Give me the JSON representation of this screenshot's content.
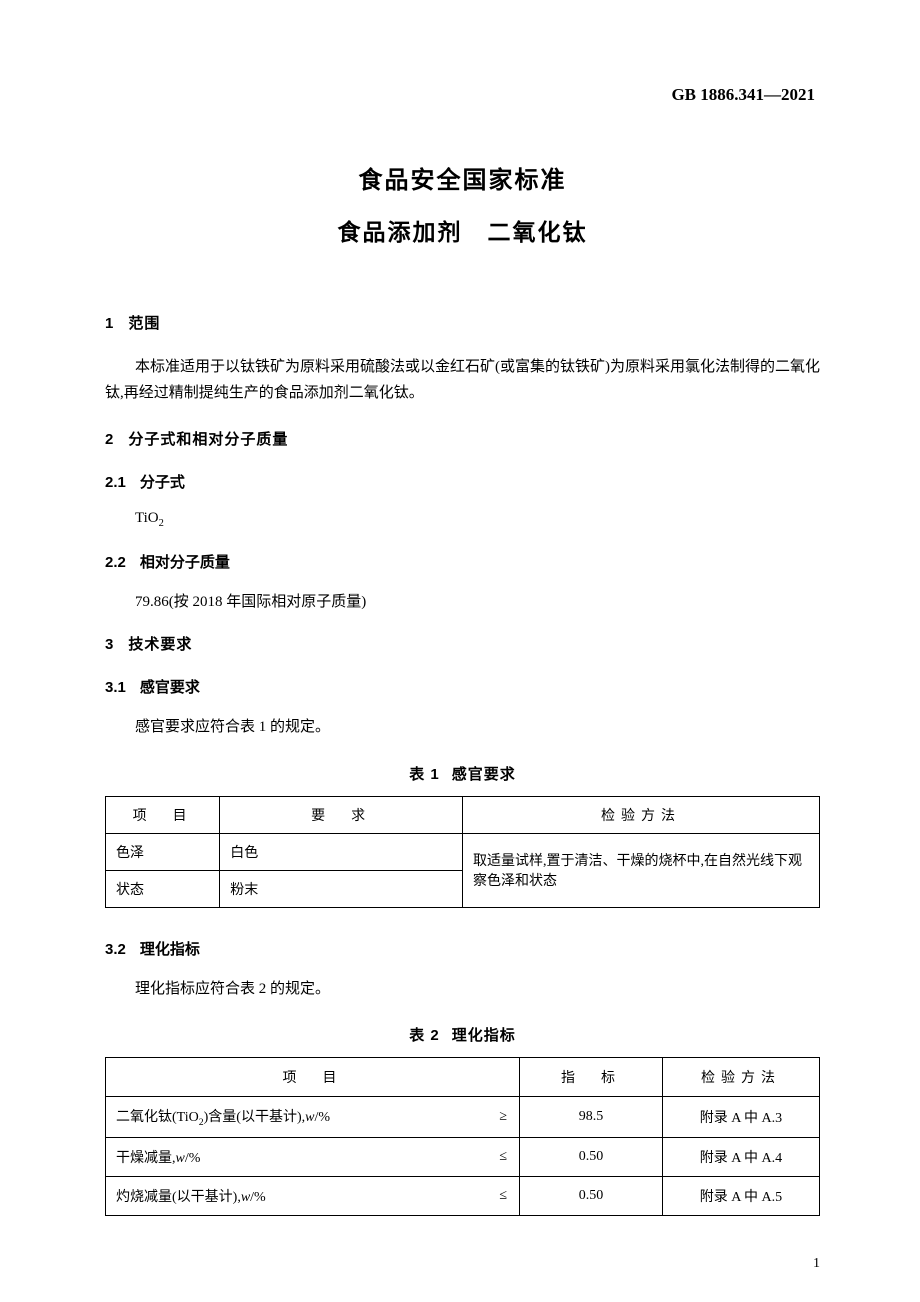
{
  "header": {
    "standard_code": "GB 1886.341—2021"
  },
  "titles": {
    "main": "食品安全国家标准",
    "sub_a": "食品添加剂",
    "sub_b": "二氧化钛"
  },
  "sections": {
    "s1": {
      "num": "1",
      "title": "范围",
      "body": "本标准适用于以钛铁矿为原料采用硫酸法或以金红石矿(或富集的钛铁矿)为原料采用氯化法制得的二氧化钛,再经过精制提纯生产的食品添加剂二氧化钛。"
    },
    "s2": {
      "num": "2",
      "title": "分子式和相对分子质量"
    },
    "s2_1": {
      "num": "2.1",
      "title": "分子式",
      "formula_base": "TiO",
      "formula_sub": "2"
    },
    "s2_2": {
      "num": "2.2",
      "title": "相对分子质量",
      "value": "79.86(按 2018 年国际相对原子质量)"
    },
    "s3": {
      "num": "3",
      "title": "技术要求"
    },
    "s3_1": {
      "num": "3.1",
      "title": "感官要求",
      "body": "感官要求应符合表 1 的规定。"
    },
    "s3_2": {
      "num": "3.2",
      "title": "理化指标",
      "body": "理化指标应符合表 2 的规定。"
    }
  },
  "table1": {
    "caption_num": "表 1",
    "caption_title": "感官要求",
    "headers": {
      "item": "项　目",
      "req": "要　求",
      "method": "检验方法"
    },
    "rows": [
      {
        "item": "色泽",
        "req": "白色"
      },
      {
        "item": "状态",
        "req": "粉末"
      }
    ],
    "method_merged": "取适量试样,置于清洁、干燥的烧杯中,在自然光线下观察色泽和状态"
  },
  "table2": {
    "caption_num": "表 2",
    "caption_title": "理化指标",
    "headers": {
      "item": "项　目",
      "idx": "指　标",
      "method": "检验方法"
    },
    "rows": [
      {
        "item_html": "二氧化钛(TiO<sub>2</sub>)含量(以干基计),<i>w</i>/%",
        "op": "≥",
        "idx": "98.5",
        "method": "附录 A 中 A.3"
      },
      {
        "item_html": "干燥减量,<i>w</i>/%",
        "op": "≤",
        "idx": "0.50",
        "method": "附录 A 中 A.4"
      },
      {
        "item_html": "灼烧减量(以干基计),<i>w</i>/%",
        "op": "≤",
        "idx": "0.50",
        "method": "附录 A 中 A.5"
      }
    ]
  },
  "page_number": "1"
}
